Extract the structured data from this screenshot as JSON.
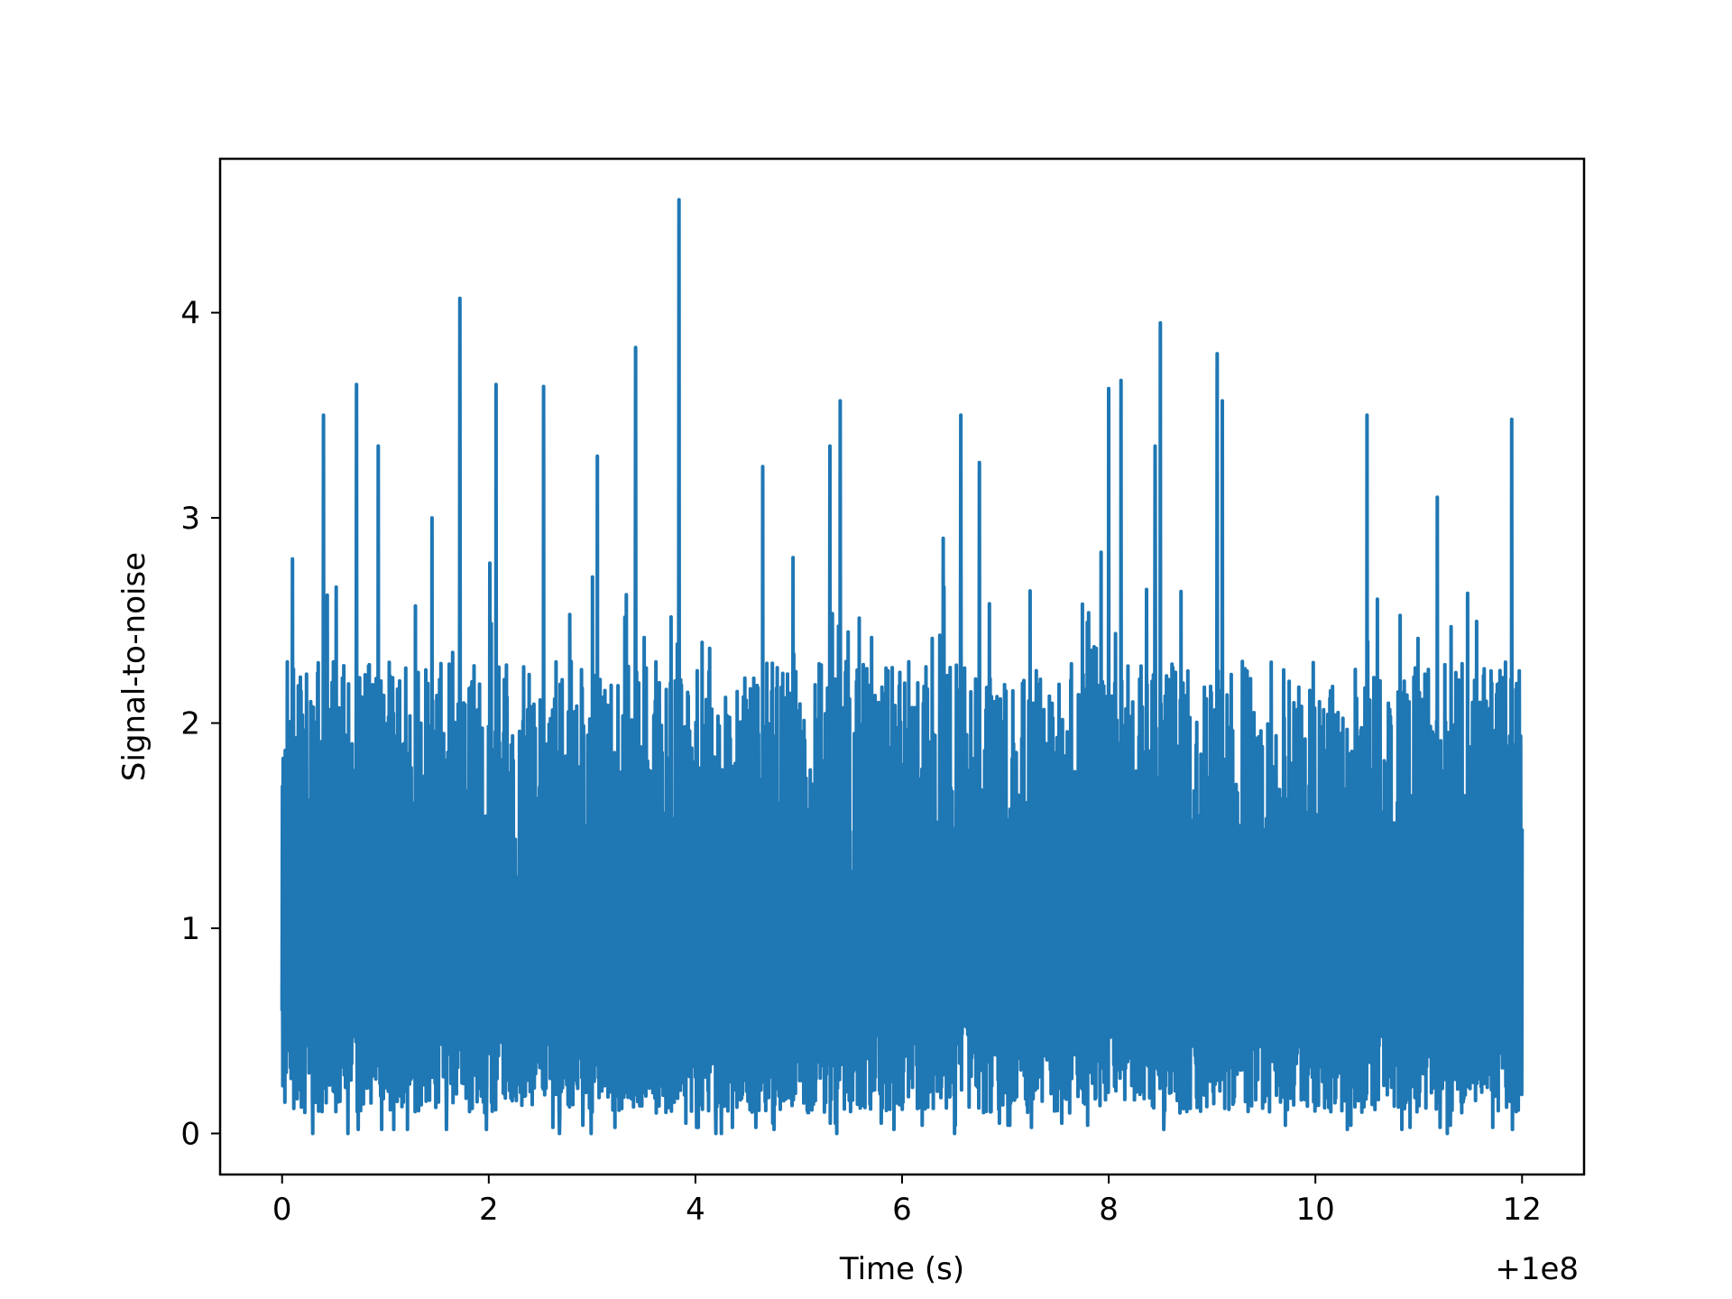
{
  "chart_data": {
    "type": "line",
    "xlabel": "Time (s)",
    "ylabel": "Signal-to-noise",
    "x_offset_label": "+1e8",
    "xlim": [
      -0.6,
      12.6
    ],
    "ylim": [
      -0.2,
      4.75
    ],
    "x_ticks": [
      0,
      2,
      4,
      6,
      8,
      10,
      12
    ],
    "y_ticks": [
      0,
      1,
      2,
      3,
      4
    ],
    "grid": false,
    "legend": "none",
    "series": [
      {
        "color": "#1f77b4",
        "x_start": 0,
        "x_end": 12,
        "samples": 3600,
        "typical_range": [
          0.1,
          2.3
        ],
        "peaks": [
          {
            "x": 0.1,
            "y": 2.8
          },
          {
            "x": 0.4,
            "y": 3.5
          },
          {
            "x": 0.72,
            "y": 3.65
          },
          {
            "x": 0.93,
            "y": 3.35
          },
          {
            "x": 1.45,
            "y": 3.0
          },
          {
            "x": 1.72,
            "y": 4.07
          },
          {
            "x": 2.07,
            "y": 3.65
          },
          {
            "x": 2.53,
            "y": 3.64
          },
          {
            "x": 3.05,
            "y": 3.3
          },
          {
            "x": 3.42,
            "y": 3.83
          },
          {
            "x": 3.84,
            "y": 4.55
          },
          {
            "x": 4.65,
            "y": 3.25
          },
          {
            "x": 5.3,
            "y": 3.35
          },
          {
            "x": 5.4,
            "y": 3.57
          },
          {
            "x": 6.4,
            "y": 2.9
          },
          {
            "x": 6.57,
            "y": 3.5
          },
          {
            "x": 6.75,
            "y": 3.27
          },
          {
            "x": 8.0,
            "y": 3.63
          },
          {
            "x": 8.12,
            "y": 3.67
          },
          {
            "x": 8.45,
            "y": 3.35
          },
          {
            "x": 8.5,
            "y": 3.95
          },
          {
            "x": 9.05,
            "y": 3.8
          },
          {
            "x": 9.1,
            "y": 3.57
          },
          {
            "x": 10.5,
            "y": 3.5
          },
          {
            "x": 11.18,
            "y": 3.1
          },
          {
            "x": 11.9,
            "y": 3.48
          }
        ],
        "troughs": [
          0.0,
          0.02,
          0.03,
          0.04,
          0.05
        ]
      }
    ]
  }
}
